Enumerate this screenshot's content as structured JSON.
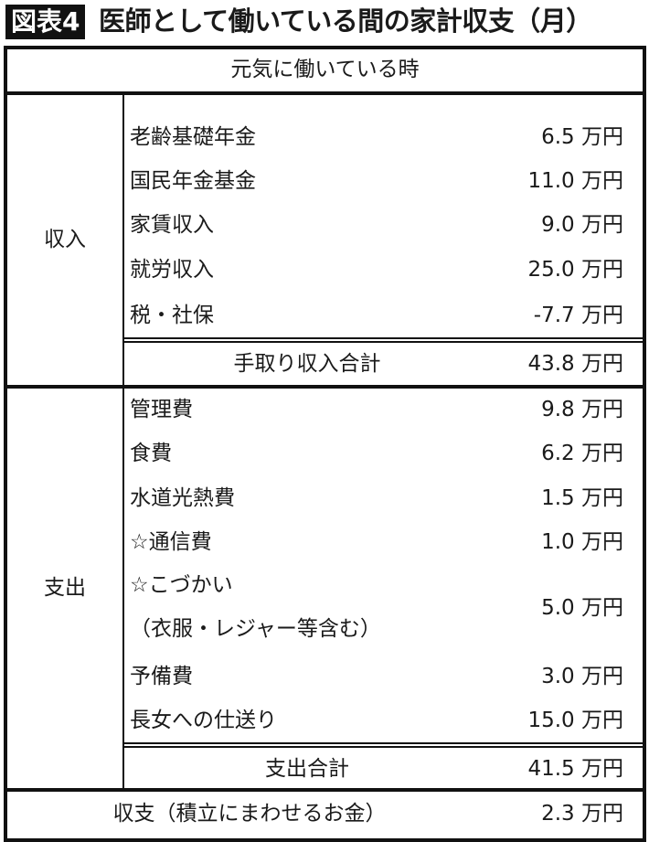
{
  "figure_label": "図表4",
  "title": "医師として働いている間の家計収支（月）",
  "header": "元気に働いている時",
  "income": {
    "label": "収入",
    "items": [
      {
        "name": "老齢基礎年金",
        "value": "6.5 万円"
      },
      {
        "name": "国民年金基金",
        "value": "11.0 万円"
      },
      {
        "name": "家賃収入",
        "value": "9.0 万円"
      },
      {
        "name": "就労収入",
        "value": "25.0 万円"
      },
      {
        "name": "税・社保",
        "value": "-7.7 万円"
      }
    ],
    "total_label": "手取り収入合計",
    "total_value": "43.8 万円"
  },
  "expense": {
    "label": "支出",
    "items": [
      {
        "name": "管理費",
        "value": "9.8 万円"
      },
      {
        "name": "食費",
        "value": "6.2 万円"
      },
      {
        "name": "水道光熱費",
        "value": "1.5 万円"
      },
      {
        "name": "☆通信費",
        "value": "1.0 万円"
      },
      {
        "name": "☆こづかい",
        "name2": "（衣服・レジャー等含む）",
        "value": "5.0 万円"
      },
      {
        "name": "予備費",
        "value": "3.0 万円"
      },
      {
        "name": "長女への仕送り",
        "value": "15.0 万円"
      }
    ],
    "total_label": "支出合計",
    "total_value": "41.5 万円"
  },
  "balance": {
    "label": "収支（積立にまわせるお金）",
    "value": "2.3 万円"
  }
}
